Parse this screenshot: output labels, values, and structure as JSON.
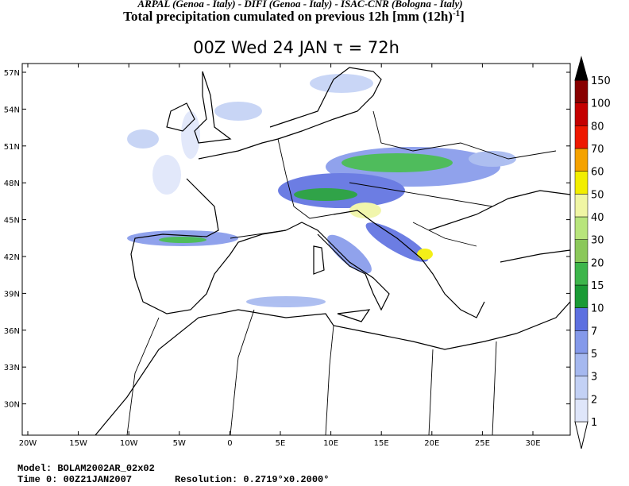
{
  "header": {
    "credits": "ARPAL (Genoa - Italy)  -  DIFI (Genoa - Italy)  -  ISAC-CNR (Bologna - Italy)",
    "title": "Total precipitation cumulated on previous 12h [mm (12h)",
    "title_superscript": "-1",
    "title_close": "]",
    "subtitle": "00Z Wed 24 JAN  τ = 72h"
  },
  "map": {
    "lon_labels": [
      "20W",
      "15W",
      "10W",
      "5W",
      "0",
      "5E",
      "10E",
      "15E",
      "20E",
      "25E",
      "30E"
    ],
    "lat_labels": [
      "57N",
      "54N",
      "51N",
      "48N",
      "45N",
      "42N",
      "39N",
      "36N",
      "33N",
      "30N"
    ]
  },
  "colorbar": {
    "levels": [
      1,
      2,
      3,
      5,
      7,
      10,
      15,
      20,
      30,
      40,
      50,
      60,
      70,
      80,
      100,
      150
    ],
    "colors": [
      "#ffffff",
      "#dfe6fa",
      "#c3d1f5",
      "#a5b8ef",
      "#8499ea",
      "#5d70e0",
      "#1a9a35",
      "#3db54b",
      "#8bc85a",
      "#b8e57c",
      "#f0f6a4",
      "#f2ee00",
      "#f5a200",
      "#ee1800",
      "#c40000",
      "#880000",
      "#000000"
    ]
  },
  "footer": {
    "model": "Model: BOLAM2002AR_02x02",
    "time": "Time 0: 00Z21JAN2007",
    "resolution": "Resolution: 0.2719°x0.2000°"
  }
}
